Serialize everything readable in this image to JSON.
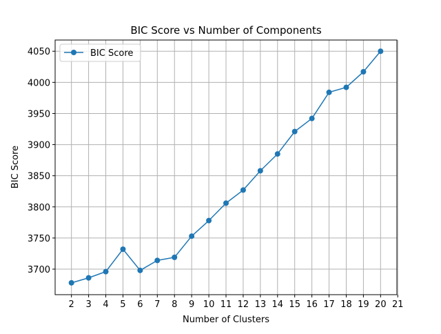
{
  "chart_data": {
    "type": "line",
    "title": "BIC Score vs Number of Components",
    "xlabel": "Number of Clusters",
    "ylabel": "BIC Score",
    "x": [
      2,
      3,
      4,
      5,
      6,
      7,
      8,
      9,
      10,
      11,
      12,
      13,
      14,
      15,
      16,
      17,
      18,
      19,
      20
    ],
    "series": [
      {
        "name": "BIC Score",
        "color": "#1f77b4",
        "marker": "circle",
        "values": [
          3678,
          3686,
          3696,
          3732,
          3698,
          3714,
          3719,
          3753,
          3778,
          3806,
          3827,
          3858,
          3885,
          3921,
          3942,
          3984,
          3992,
          4017,
          4050
        ]
      }
    ],
    "xticks": [
      2,
      3,
      4,
      5,
      6,
      7,
      8,
      9,
      10,
      11,
      12,
      13,
      14,
      15,
      16,
      17,
      18,
      19,
      20,
      21
    ],
    "yticks": [
      3700,
      3750,
      3800,
      3850,
      3900,
      3950,
      4000,
      4050
    ],
    "xlim": [
      1.05,
      20.95
    ],
    "ylim": [
      3659,
      4068
    ],
    "grid": true,
    "grid_color": "#b0b0b0",
    "legend_position": "upper-left"
  }
}
